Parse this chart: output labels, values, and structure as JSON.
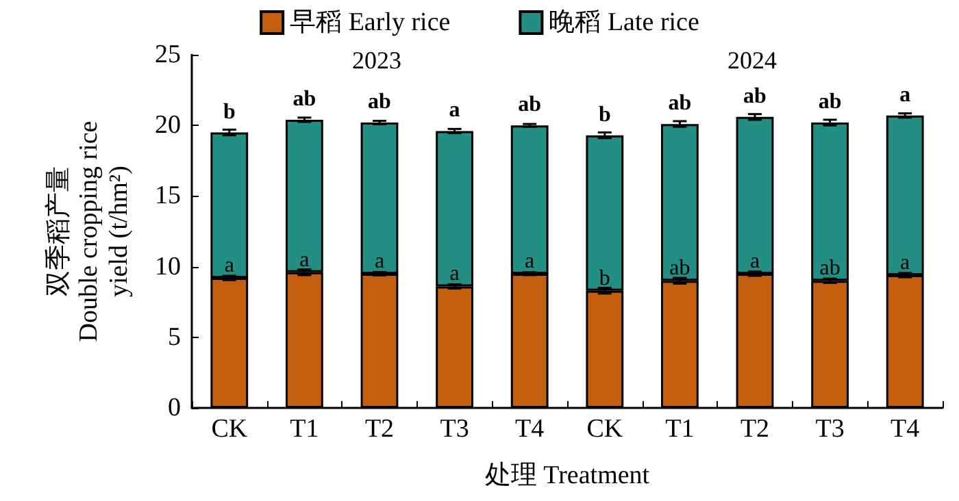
{
  "chart_data": {
    "type": "bar",
    "stacked": true,
    "xlabel": "处理 Treatment",
    "ylabel": "双季稻产量\nDouble cropping rice\nyield (t/hm²)",
    "categories": [
      "CK",
      "T1",
      "T2",
      "T3",
      "T4",
      "CK",
      "T1",
      "T2",
      "T3",
      "T4"
    ],
    "series": [
      {
        "name": "早稻 Early rice",
        "color": "#c55f10",
        "values": [
          9.2,
          9.6,
          9.5,
          8.6,
          9.5,
          8.3,
          9.0,
          9.5,
          9.0,
          9.4
        ],
        "errors": [
          0.15,
          0.2,
          0.12,
          0.15,
          0.1,
          0.2,
          0.2,
          0.15,
          0.15,
          0.15
        ],
        "value_labels": [
          "a",
          "a",
          "a",
          "a",
          "a",
          "b",
          "ab",
          "a",
          "ab",
          "a"
        ]
      },
      {
        "name": "晚稻 Late rice",
        "color": "#238e83",
        "values": [
          10.3,
          10.8,
          10.7,
          11.0,
          10.5,
          11.0,
          11.1,
          11.1,
          11.2,
          11.3
        ],
        "errors": [
          0.2,
          0.15,
          0.12,
          0.15,
          0.1,
          0.2,
          0.2,
          0.2,
          0.2,
          0.15
        ],
        "value_labels": [
          "b",
          "ab",
          "ab",
          "a",
          "ab",
          "b",
          "ab",
          "ab",
          "ab",
          "a"
        ]
      }
    ],
    "ylim": [
      0,
      25
    ],
    "yticks": [
      0,
      5,
      10,
      15,
      20,
      25
    ],
    "grid": false,
    "legend": "top",
    "annotations": [
      "2023",
      "2024"
    ]
  }
}
